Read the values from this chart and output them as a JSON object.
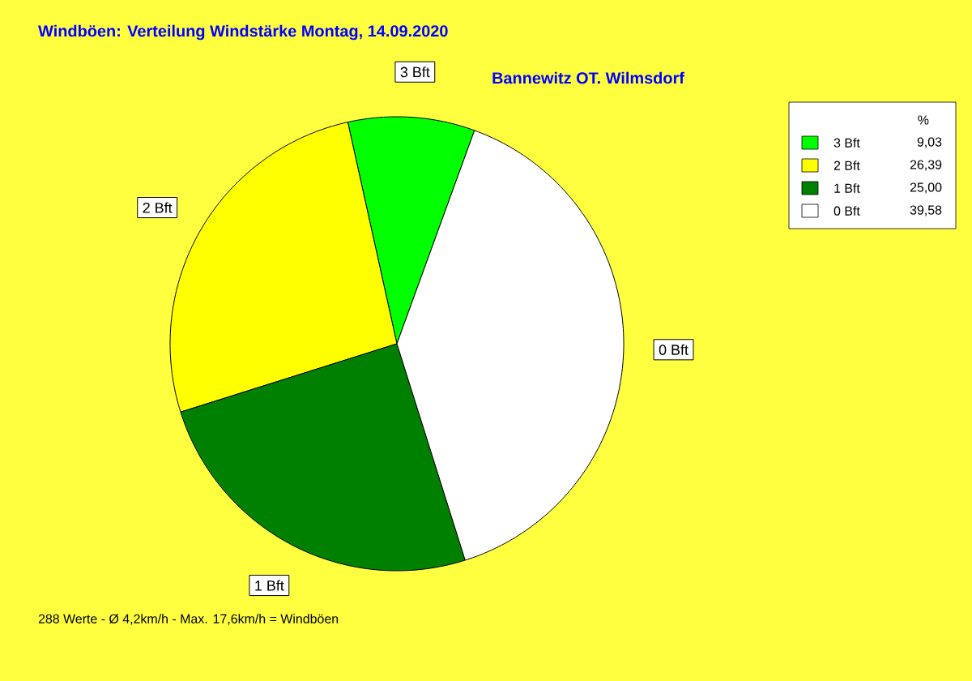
{
  "chart_data": {
    "type": "pie",
    "title": "Windböen: Verteilung Windstärke  Montag, 14.09.2020",
    "subtitle": "Bannewitz OT. Wilmsdorf",
    "categories": [
      "3 Bft",
      "2 Bft",
      "1 Bft",
      "0 Bft"
    ],
    "values": [
      9.03,
      26.39,
      25.0,
      39.58
    ],
    "colors": [
      "#00ff00",
      "#ffff00",
      "#008000",
      "#ffffff"
    ],
    "value_labels": [
      "9,03",
      "26,39",
      "25,00",
      "39,58"
    ],
    "legend_title": "%",
    "legend": "top right",
    "annotations": [
      "288 Werte   -   Ø 4,2km/h  -  Max. 17,6km/h = Windböen"
    ]
  }
}
